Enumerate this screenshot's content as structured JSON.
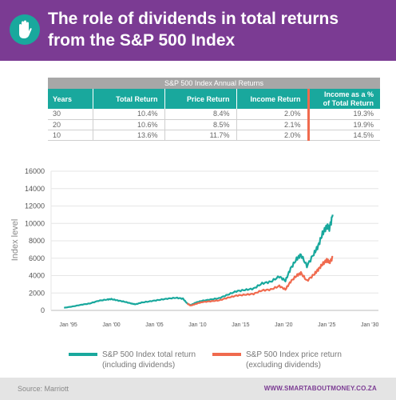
{
  "header": {
    "title_line1": "The role of dividends in total returns",
    "title_line2": "from the S&P 500 Index",
    "logo_icon": "hand-icon",
    "accent_color": "#7b3b93"
  },
  "table": {
    "caption": "S&P 500 Index Annual Returns",
    "columns": [
      "Years",
      "Total Return",
      "Price Return",
      "Income Return",
      "Income as a %",
      "of Total Return"
    ],
    "rows": [
      [
        "30",
        "10.4%",
        "8.4%",
        "2.0%",
        "19.3%"
      ],
      [
        "20",
        "10.6%",
        "8.5%",
        "2.1%",
        "19.9%"
      ],
      [
        "10",
        "13.6%",
        "11.7%",
        "2.0%",
        "14.5%"
      ]
    ]
  },
  "chart_data": {
    "type": "line",
    "title": "",
    "xlabel": "",
    "ylabel": "Index level",
    "ylim": [
      0,
      16000
    ],
    "xlim": [
      1993,
      2031
    ],
    "yticks": [
      "0",
      "2000",
      "4000",
      "6000",
      "8000",
      "10000",
      "12000",
      "14000",
      "16000"
    ],
    "xticks": [
      {
        "label": "Jan '95",
        "x": 1995
      },
      {
        "label": "Jan '00",
        "x": 2000
      },
      {
        "label": "Jan '05",
        "x": 2005
      },
      {
        "label": "Jan '10",
        "x": 2010
      },
      {
        "label": "Jan '15",
        "x": 2015
      },
      {
        "label": "Jan '20",
        "x": 2020
      },
      {
        "label": "Jan '25",
        "x": 2025
      },
      {
        "label": "Jan '30",
        "x": 2030
      }
    ],
    "grid": "horizontal",
    "series": [
      {
        "name": "S&P 500 Index total return (including dividends)",
        "name_line1": "S&P 500 Index total return",
        "name_line2": "(including dividends)",
        "color": "#19a89d",
        "x": [
          1994.5,
          1995.5,
          1996.5,
          1997.5,
          1998.5,
          1999.5,
          2000.0,
          2000.7,
          2001.5,
          2002.3,
          2002.8,
          2003.5,
          2004.5,
          2005.5,
          2006.5,
          2007.5,
          2008.3,
          2008.8,
          2009.2,
          2009.8,
          2010.5,
          2011.5,
          2012.5,
          2013.5,
          2014.5,
          2015.5,
          2016.5,
          2017.5,
          2018.5,
          2019.5,
          2020.2,
          2020.8,
          2021.5,
          2022.0,
          2022.7,
          2023.5,
          2024.0,
          2024.5,
          2025.0,
          2025.3,
          2025.7
        ],
        "y": [
          300,
          450,
          650,
          800,
          1100,
          1250,
          1300,
          1150,
          1000,
          800,
          700,
          900,
          1050,
          1200,
          1350,
          1450,
          1350,
          800,
          600,
          900,
          1100,
          1250,
          1400,
          1800,
          2200,
          2350,
          2500,
          3100,
          3300,
          3900,
          3400,
          4800,
          5900,
          6400,
          5100,
          6500,
          7400,
          8800,
          9700,
          9400,
          11000
        ]
      },
      {
        "name": "S&P 500 Index price return (excluding dividends)",
        "name_line1": "S&P 500 Index price return",
        "name_line2": "(excluding dividends)",
        "color": "#f06a4e",
        "x": [
          2008.8,
          2009.2,
          2009.8,
          2010.5,
          2011.5,
          2012.5,
          2013.5,
          2014.5,
          2015.5,
          2016.5,
          2017.5,
          2018.5,
          2019.5,
          2020.2,
          2020.8,
          2021.5,
          2022.0,
          2022.7,
          2023.5,
          2024.0,
          2024.5,
          2025.0,
          2025.3,
          2025.7
        ],
        "y": [
          800,
          550,
          750,
          950,
          1050,
          1150,
          1450,
          1700,
          1800,
          1900,
          2300,
          2400,
          2800,
          2400,
          3300,
          4000,
          4300,
          3400,
          4100,
          4700,
          5300,
          5800,
          5500,
          6100
        ]
      }
    ],
    "legend": "bottom"
  },
  "footer": {
    "source": "Source: Marriott",
    "site": "WWW.SMARTABOUTMONEY.CO.ZA"
  }
}
